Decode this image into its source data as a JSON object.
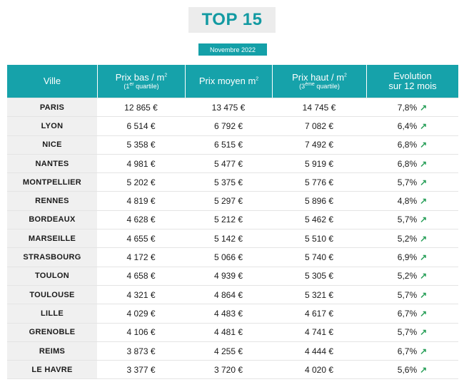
{
  "title": "TOP 15",
  "date_label": "Novembre 2022",
  "table": {
    "headers": {
      "city": "Ville",
      "low_line1": "Prix bas / m",
      "low_sup": "2",
      "low_sub_pre": "(1",
      "low_sub_sup": "er",
      "low_sub_post": " quartile)",
      "mean": "Prix moyen m",
      "mean_sup": "2",
      "high_line1": "Prix haut / m",
      "high_sup": "2",
      "high_sub_pre": "(3",
      "high_sub_sup": "ème",
      "high_sub_post": " quartile)",
      "evo_line1": "Evolution",
      "evo_line2": "sur 12 mois"
    },
    "rows": [
      {
        "city": "PARIS",
        "low": "12 865 €",
        "mean": "13 475 €",
        "high": "14 745 €",
        "evo": "7,8%"
      },
      {
        "city": "LYON",
        "low": "6 514 €",
        "mean": "6 792 €",
        "high": "7 082 €",
        "evo": "6,4%"
      },
      {
        "city": "NICE",
        "low": "5 358 €",
        "mean": "6 515 €",
        "high": "7 492 €",
        "evo": "6,8%"
      },
      {
        "city": "NANTES",
        "low": "4 981 €",
        "mean": "5 477 €",
        "high": "5 919 €",
        "evo": "6,8%"
      },
      {
        "city": "MONTPELLIER",
        "low": "5 202 €",
        "mean": "5 375 €",
        "high": "5 776 €",
        "evo": "5,7%"
      },
      {
        "city": "RENNES",
        "low": "4 819 €",
        "mean": "5 297 €",
        "high": "5 896 €",
        "evo": "4,8%"
      },
      {
        "city": "BORDEAUX",
        "low": "4 628 €",
        "mean": "5 212 €",
        "high": "5 462 €",
        "evo": "5,7%"
      },
      {
        "city": "MARSEILLE",
        "low": "4 655 €",
        "mean": "5 142 €",
        "high": "5 510 €",
        "evo": "5,2%"
      },
      {
        "city": "STRASBOURG",
        "low": "4 172 €",
        "mean": "5 066 €",
        "high": "5 740 €",
        "evo": "6,9%"
      },
      {
        "city": "TOULON",
        "low": "4 658 €",
        "mean": "4 939 €",
        "high": "5 305 €",
        "evo": "5,2%"
      },
      {
        "city": "TOULOUSE",
        "low": "4 321 €",
        "mean": "4 864 €",
        "high": "5 321 €",
        "evo": "5,7%"
      },
      {
        "city": "LILLE",
        "low": "4 029 €",
        "mean": "4 483 €",
        "high": "4 617 €",
        "evo": "6,7%"
      },
      {
        "city": "GRENOBLE",
        "low": "4 106 €",
        "mean": "4 481 €",
        "high": "4 741 €",
        "evo": "5,7%"
      },
      {
        "city": "REIMS",
        "low": "3 873 €",
        "mean": "4 255 €",
        "high": "4 444 €",
        "evo": "6,7%"
      },
      {
        "city": "LE HAVRE",
        "low": "3 377 €",
        "mean": "3 720 €",
        "high": "4 020 €",
        "evo": "5,6%"
      }
    ]
  },
  "icons": {
    "trend": "trend-up-arrow-icon"
  },
  "colors": {
    "accent": "#16a2aa",
    "title": "#139aa2",
    "trend": "#2aa05a",
    "city_bg": "#f0f0f0"
  }
}
